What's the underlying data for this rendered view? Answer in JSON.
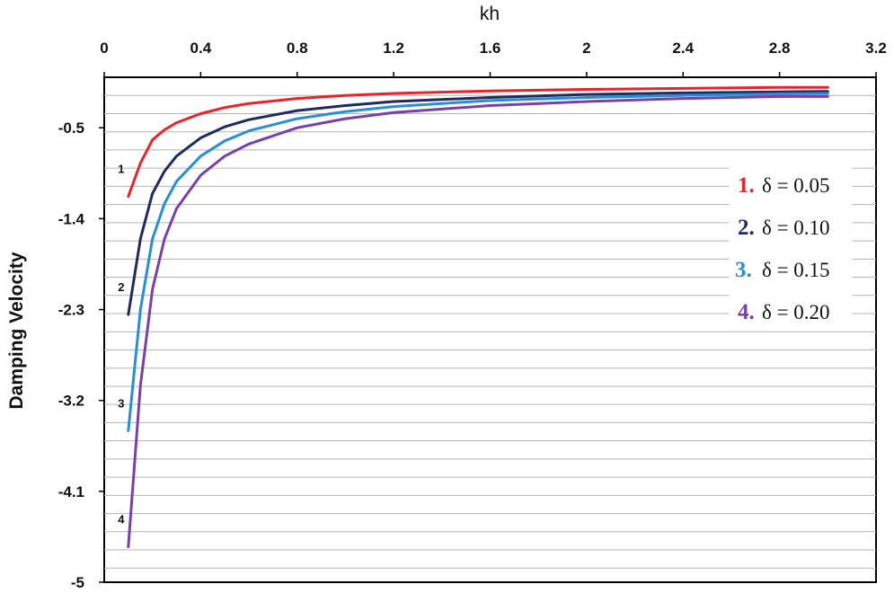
{
  "chart_data": {
    "type": "line",
    "title": "",
    "xlabel": "kh",
    "ylabel": "Damping Velocity",
    "xlim": [
      0,
      3.2
    ],
    "ylim": [
      -5,
      0
    ],
    "x_ticks": [
      "0",
      "0.4",
      "0.8",
      "1.2",
      "1.6",
      "2",
      "2.4",
      "2.8",
      "3.2"
    ],
    "x_tick_values": [
      0,
      0.4,
      0.8,
      1.2,
      1.6,
      2,
      2.4,
      2.8,
      3.2
    ],
    "y_ticks": [
      "-0.5",
      "-1.4",
      "-2.3",
      "-3.2",
      "-4.1",
      "-5"
    ],
    "y_tick_values": [
      -0.5,
      -1.4,
      -2.3,
      -3.2,
      -4.1,
      -5
    ],
    "grid": "horizontal",
    "grid_step": 0.18,
    "x_axis_position": "top",
    "legend_position": "right",
    "x": [
      0.1,
      0.15,
      0.2,
      0.25,
      0.3,
      0.4,
      0.5,
      0.6,
      0.8,
      1.0,
      1.2,
      1.6,
      2.0,
      2.4,
      2.8,
      3.0
    ],
    "series": [
      {
        "name": "1",
        "legend_num": "1.",
        "legend_label": "δ = 0.05",
        "color": "#e8242a",
        "values": [
          -1.18,
          -0.85,
          -0.62,
          -0.52,
          -0.45,
          -0.36,
          -0.3,
          -0.26,
          -0.21,
          -0.18,
          -0.16,
          -0.135,
          -0.12,
          -0.11,
          -0.1,
          -0.1
        ]
      },
      {
        "name": "2",
        "legend_num": "2.",
        "legend_label": "δ = 0.10",
        "color": "#1f2a5e",
        "values": [
          -2.35,
          -1.6,
          -1.15,
          -0.93,
          -0.78,
          -0.6,
          -0.49,
          -0.42,
          -0.33,
          -0.28,
          -0.24,
          -0.2,
          -0.17,
          -0.155,
          -0.145,
          -0.14
        ]
      },
      {
        "name": "3",
        "legend_num": "3.",
        "legend_label": "δ = 0.15",
        "color": "#2a8ed4",
        "values": [
          -3.5,
          -2.3,
          -1.6,
          -1.25,
          -1.03,
          -0.78,
          -0.63,
          -0.53,
          -0.41,
          -0.34,
          -0.29,
          -0.23,
          -0.2,
          -0.18,
          -0.165,
          -0.16
        ]
      },
      {
        "name": "4",
        "legend_num": "4.",
        "legend_label": "δ = 0.20",
        "color": "#7a3fa8",
        "values": [
          -4.65,
          -3.05,
          -2.1,
          -1.6,
          -1.3,
          -0.97,
          -0.78,
          -0.66,
          -0.5,
          -0.41,
          -0.35,
          -0.28,
          -0.24,
          -0.21,
          -0.19,
          -0.19
        ]
      }
    ]
  }
}
